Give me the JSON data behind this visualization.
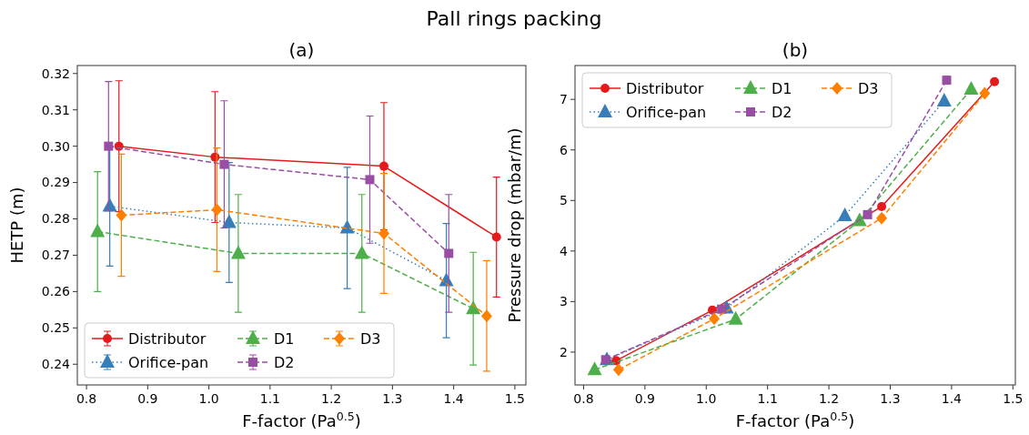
{
  "chart_data": [
    {
      "type": "line",
      "title": "(a)",
      "annotations": [
        "Pall rings packing"
      ],
      "xlabel": "F-factor (Pa$^{0.5}$)",
      "ylabel": "HETP (m)",
      "xlim": [
        0.785,
        1.518
      ],
      "ylim": [
        0.2343,
        0.3222
      ],
      "xticks": [
        0.8,
        0.9,
        {
          "value": 1,
          "label": "1.0"
        },
        1.1,
        1.2,
        1.3,
        1.4,
        1.5
      ],
      "yticks": [
        0.24,
        0.25,
        0.26,
        0.27,
        0.28,
        0.29,
        {
          "value": 0.3,
          "label": "0.30"
        },
        0.31,
        0.32
      ],
      "grid": false,
      "legend": "bottom left",
      "series": [
        {
          "name": "Distributor",
          "color": "#e41a1c",
          "marker": "circle",
          "line_style": "solid",
          "x": [
            0.853,
            1.01,
            1.286,
            1.47
          ],
          "values": [
            0.3,
            0.297,
            0.2945,
            0.275
          ],
          "errors": [
            0.018,
            0.018,
            0.0175,
            0.0165
          ]
        },
        {
          "name": "Orifice-pan",
          "color": "#377eb8",
          "marker": "triangle",
          "line_style": "dotted",
          "x": [
            0.838,
            1.033,
            1.226,
            1.388
          ],
          "values": [
            0.2835,
            0.279,
            0.2775,
            0.263
          ],
          "errors": [
            0.0165,
            0.0165,
            0.0167,
            0.0157
          ]
        },
        {
          "name": "D1",
          "color": "#4daf4a",
          "marker": "triangle",
          "line_style": "dashed",
          "x": [
            0.818,
            1.048,
            1.25,
            1.432
          ],
          "values": [
            0.2765,
            0.2705,
            0.2705,
            0.2553
          ],
          "errors": [
            0.0165,
            0.0162,
            0.0162,
            0.0155
          ]
        },
        {
          "name": "D2",
          "color": "#984ea3",
          "marker": "square",
          "line_style": "dashed",
          "x": [
            0.836,
            1.025,
            1.263,
            1.392
          ],
          "values": [
            0.3,
            0.295,
            0.2908,
            0.2705
          ],
          "errors": [
            0.0178,
            0.0175,
            0.0175,
            0.0162
          ]
        },
        {
          "name": "D3",
          "color": "#ff7f00",
          "marker": "diamond",
          "line_style": "dashed",
          "x": [
            0.857,
            1.013,
            1.286,
            1.454
          ],
          "values": [
            0.281,
            0.2825,
            0.276,
            0.2533
          ],
          "errors": [
            0.0168,
            0.017,
            0.0165,
            0.0152
          ]
        }
      ]
    },
    {
      "type": "line",
      "title": "(b)",
      "xlabel": "F-factor (Pa$^{0.5}$)",
      "ylabel": "Pressure drop (mbar/m)",
      "xlim": [
        0.786,
        1.504
      ],
      "ylim": [
        1.35,
        7.67
      ],
      "xticks": [
        0.8,
        0.9,
        {
          "value": 1,
          "label": "1.0"
        },
        1.1,
        1.2,
        1.3,
        1.4,
        1.5
      ],
      "yticks": [
        2,
        3,
        4,
        5,
        6,
        7
      ],
      "grid": false,
      "legend": "top left",
      "series": [
        {
          "name": "Distributor",
          "color": "#e41a1c",
          "marker": "circle",
          "line_style": "solid",
          "x": [
            0.853,
            1.01,
            1.286,
            1.47
          ],
          "values": [
            1.83,
            2.83,
            4.88,
            7.35
          ]
        },
        {
          "name": "Orifice-pan",
          "color": "#377eb8",
          "marker": "triangle",
          "line_style": "dotted",
          "x": [
            0.838,
            1.033,
            1.226,
            1.388
          ],
          "values": [
            1.85,
            2.87,
            4.7,
            6.97
          ]
        },
        {
          "name": "D1",
          "color": "#4daf4a",
          "marker": "triangle",
          "line_style": "dashed",
          "x": [
            0.818,
            1.048,
            1.25,
            1.432
          ],
          "values": [
            1.65,
            2.65,
            4.6,
            7.2
          ]
        },
        {
          "name": "D2",
          "color": "#984ea3",
          "marker": "square",
          "line_style": "dashed",
          "x": [
            0.836,
            1.025,
            1.263,
            1.392
          ],
          "values": [
            1.85,
            2.85,
            4.72,
            7.38
          ]
        },
        {
          "name": "D3",
          "color": "#ff7f00",
          "marker": "diamond",
          "line_style": "dashed",
          "x": [
            0.857,
            1.013,
            1.286,
            1.454
          ],
          "values": [
            1.65,
            2.66,
            4.65,
            7.12
          ]
        }
      ]
    }
  ]
}
